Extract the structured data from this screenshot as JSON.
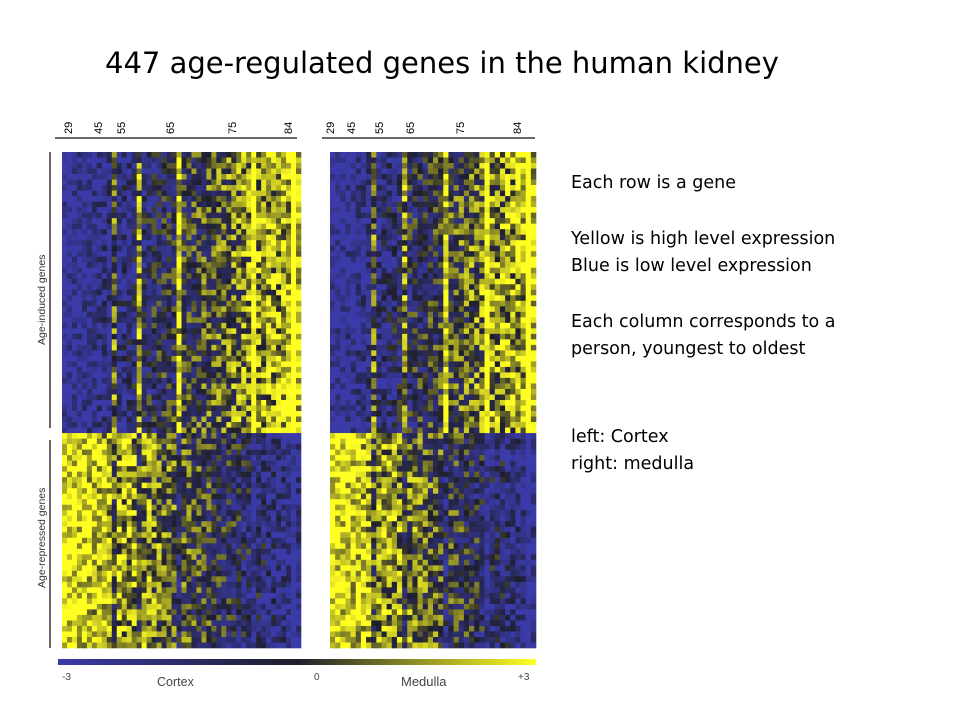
{
  "title": "447 age-regulated genes in the human kidney",
  "notes": {
    "line1": "Each row is a gene",
    "line2": "Yellow is high level expression",
    "line3": "Blue is low level expression",
    "line4": "Each column corresponds to a",
    "line5": "person, youngest to oldest",
    "line6": "left: Cortex",
    "line7": "right: medulla"
  },
  "chart_data": {
    "type": "heatmap",
    "panels": [
      {
        "tissue": "Cortex",
        "age_ticks": [
          "29",
          "45",
          "55",
          "65",
          "75",
          "84"
        ]
      },
      {
        "tissue": "Medulla",
        "age_ticks": [
          "29",
          "45",
          "55",
          "65",
          "75",
          "84"
        ]
      }
    ],
    "row_groups": [
      "Age-induced genes",
      "Age-repressed genes"
    ],
    "color_scale": {
      "min": -3,
      "mid": 0,
      "max": 3,
      "min_label": "-3",
      "mid_label": "0",
      "max_label": "+3",
      "left_label": "Cortex",
      "right_label": "Medulla",
      "low_color": "#3a3aa8",
      "mid_color": "#1e1e2a",
      "high_color": "#ffff22"
    }
  }
}
